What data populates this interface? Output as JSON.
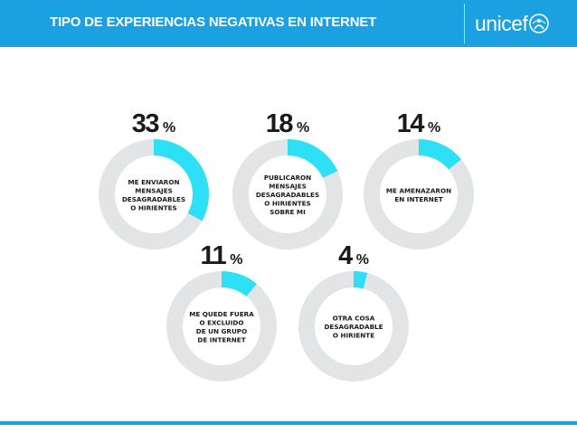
{
  "header": {
    "title": "TIPO DE EXPERIENCIAS NEGATIVAS EN INTERNET",
    "logo_text": "unicef",
    "logo_emblem": "unicef-emblem-icon"
  },
  "colors": {
    "header_bg": "#1ba0e2",
    "ring_fill": "#2ee0f5",
    "ring_track": "#e3e4e6",
    "text": "#1a1a1a"
  },
  "chart_data": {
    "type": "donut",
    "title": "TIPO DE EXPERIENCIAS NEGATIVAS EN INTERNET",
    "unit": "%",
    "items": [
      {
        "value": 33,
        "label": [
          "ME ENVIARON",
          "MENSAJES",
          "DESAGRADABLES",
          "O HIRIENTES"
        ]
      },
      {
        "value": 18,
        "label": [
          "PUBLICARON",
          "MENSAJES",
          "DESAGRADABLES",
          "O HIRIENTES",
          "SOBRE MI"
        ]
      },
      {
        "value": 14,
        "label": [
          "ME AMENAZARON",
          "EN INTERNET"
        ]
      },
      {
        "value": 11,
        "label": [
          "ME QUEDE FUERA",
          "O EXCLUIDO",
          "DE UN GRUPO",
          "DE INTERNET"
        ]
      },
      {
        "value": 4,
        "label": [
          "OTRA COSA",
          "DESAGRADABLE",
          "O HIRIENTE"
        ]
      }
    ]
  }
}
